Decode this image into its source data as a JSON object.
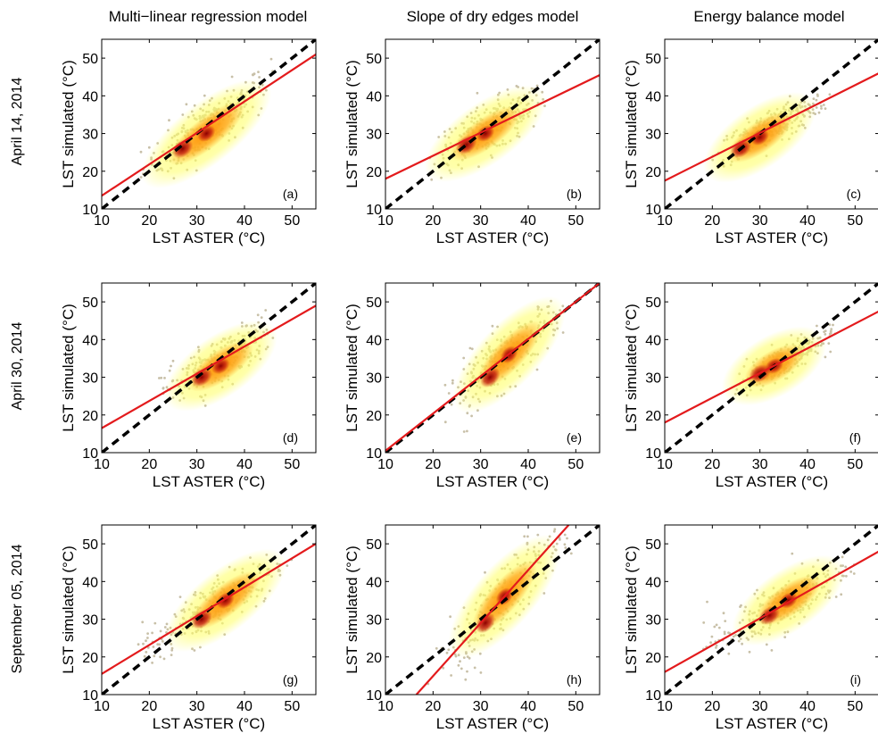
{
  "columns": [
    "Multi−linear regression model",
    "Slope of dry edges model",
    "Energy balance model"
  ],
  "rows": [
    "April 14, 2014",
    "April 30, 2014",
    "September 05, 2014"
  ],
  "colors": {
    "one_to_one_line": "#000000",
    "regression_line": "#e31a1c",
    "scatter_points": "#c8c0a8",
    "density_low": "#ffff66",
    "density_mid": "#ff8c00",
    "density_high": "#8b0000"
  },
  "chart_data": [
    {
      "type": "scatter",
      "panel_label": "(a)",
      "xlabel": "LST ASTER (°C)",
      "ylabel": "LST simulated (°C)",
      "xlim": [
        10,
        55
      ],
      "ylim": [
        10,
        55
      ],
      "xticks": [
        10,
        20,
        30,
        40,
        50
      ],
      "yticks": [
        10,
        20,
        30,
        40,
        50
      ],
      "reference_line": {
        "x": [
          10,
          55
        ],
        "y": [
          10,
          55
        ]
      },
      "regression_line": {
        "x": [
          10,
          55
        ],
        "y": [
          13.5,
          51
        ]
      },
      "density_core": {
        "x": [
          27,
          32,
          38
        ],
        "y": [
          26,
          30,
          37
        ]
      },
      "point_spread": {
        "x": [
          18,
          46
        ],
        "y": [
          18,
          52
        ]
      }
    },
    {
      "type": "scatter",
      "panel_label": "(b)",
      "xlabel": "LST ASTER (°C)",
      "ylabel": "LST simulated (°C)",
      "xlim": [
        10,
        55
      ],
      "ylim": [
        10,
        55
      ],
      "xticks": [
        10,
        20,
        30,
        40,
        50
      ],
      "yticks": [
        10,
        20,
        30,
        40,
        50
      ],
      "reference_line": {
        "x": [
          10,
          55
        ],
        "y": [
          10,
          55
        ]
      },
      "regression_line": {
        "x": [
          10,
          55
        ],
        "y": [
          18,
          45.5
        ]
      },
      "density_core": {
        "x": [
          27,
          31,
          37
        ],
        "y": [
          27,
          30,
          36
        ]
      },
      "point_spread": {
        "x": [
          19,
          45
        ],
        "y": [
          17,
          47
        ]
      }
    },
    {
      "type": "scatter",
      "panel_label": "(c)",
      "xlabel": "LST ASTER (°C)",
      "ylabel": "LST simulated (°C)",
      "xlim": [
        10,
        55
      ],
      "ylim": [
        10,
        55
      ],
      "xticks": [
        10,
        20,
        30,
        40,
        50
      ],
      "yticks": [
        10,
        20,
        30,
        40,
        50
      ],
      "reference_line": {
        "x": [
          10,
          55
        ],
        "y": [
          10,
          55
        ]
      },
      "regression_line": {
        "x": [
          10,
          55
        ],
        "y": [
          17.5,
          46
        ]
      },
      "density_core": {
        "x": [
          26,
          30,
          35
        ],
        "y": [
          26,
          29,
          34
        ]
      },
      "point_spread": {
        "x": [
          20,
          45
        ],
        "y": [
          20,
          42
        ]
      }
    },
    {
      "type": "scatter",
      "panel_label": "(d)",
      "xlabel": "LST ASTER (°C)",
      "ylabel": "LST simulated (°C)",
      "xlim": [
        10,
        55
      ],
      "ylim": [
        10,
        55
      ],
      "xticks": [
        10,
        20,
        30,
        40,
        50
      ],
      "yticks": [
        10,
        20,
        30,
        40,
        50
      ],
      "reference_line": {
        "x": [
          10,
          55
        ],
        "y": [
          10,
          55
        ]
      },
      "regression_line": {
        "x": [
          10,
          55
        ],
        "y": [
          16.5,
          49
        ]
      },
      "density_core": {
        "x": [
          31,
          35,
          40
        ],
        "y": [
          30,
          33,
          38
        ]
      },
      "point_spread": {
        "x": [
          22,
          47
        ],
        "y": [
          22,
          50
        ]
      }
    },
    {
      "type": "scatter",
      "panel_label": "(e)",
      "xlabel": "LST ASTER (°C)",
      "ylabel": "LST simulated (°C)",
      "xlim": [
        10,
        55
      ],
      "ylim": [
        10,
        55
      ],
      "xticks": [
        10,
        20,
        30,
        40,
        50
      ],
      "yticks": [
        10,
        20,
        30,
        40,
        50
      ],
      "reference_line": {
        "x": [
          10,
          55
        ],
        "y": [
          10,
          55
        ]
      },
      "regression_line": {
        "x": [
          10,
          55
        ],
        "y": [
          10.5,
          55
        ]
      },
      "density_core": {
        "x": [
          32,
          36,
          41
        ],
        "y": [
          30,
          36,
          42
        ]
      },
      "point_spread": {
        "x": [
          22,
          48
        ],
        "y": [
          15,
          51
        ]
      }
    },
    {
      "type": "scatter",
      "panel_label": "(f)",
      "xlabel": "LST ASTER (°C)",
      "ylabel": "LST simulated (°C)",
      "xlim": [
        10,
        55
      ],
      "ylim": [
        10,
        55
      ],
      "xticks": [
        10,
        20,
        30,
        40,
        50
      ],
      "yticks": [
        10,
        20,
        30,
        40,
        50
      ],
      "reference_line": {
        "x": [
          10,
          55
        ],
        "y": [
          10,
          55
        ]
      },
      "regression_line": {
        "x": [
          10,
          55
        ],
        "y": [
          18,
          47.5
        ]
      },
      "density_core": {
        "x": [
          30,
          33,
          38
        ],
        "y": [
          31,
          33,
          37
        ]
      },
      "point_spread": {
        "x": [
          24,
          46
        ],
        "y": [
          24,
          44
        ]
      }
    },
    {
      "type": "scatter",
      "panel_label": "(g)",
      "xlabel": "LST ASTER (°C)",
      "ylabel": "LST simulated (°C)",
      "xlim": [
        10,
        55
      ],
      "ylim": [
        10,
        55
      ],
      "xticks": [
        10,
        20,
        30,
        40,
        50
      ],
      "yticks": [
        10,
        20,
        30,
        40,
        50
      ],
      "reference_line": {
        "x": [
          10,
          55
        ],
        "y": [
          10,
          55
        ]
      },
      "regression_line": {
        "x": [
          10,
          55
        ],
        "y": [
          15.5,
          50
        ]
      },
      "density_core": {
        "x": [
          31,
          36,
          41
        ],
        "y": [
          30,
          35,
          40
        ]
      },
      "point_spread": {
        "x": [
          17,
          50
        ],
        "y": [
          17,
          50
        ]
      }
    },
    {
      "type": "scatter",
      "panel_label": "(h)",
      "xlabel": "LST ASTER (°C)",
      "ylabel": "LST simulated (°C)",
      "xlim": [
        10,
        55
      ],
      "ylim": [
        10,
        55
      ],
      "xticks": [
        10,
        20,
        30,
        40,
        50
      ],
      "yticks": [
        10,
        20,
        30,
        40,
        50
      ],
      "reference_line": {
        "x": [
          10,
          55
        ],
        "y": [
          10,
          55
        ]
      },
      "regression_line": {
        "x": [
          16.5,
          48.5
        ],
        "y": [
          10,
          55
        ]
      },
      "density_core": {
        "x": [
          31,
          35,
          40
        ],
        "y": [
          29,
          36,
          42
        ]
      },
      "point_spread": {
        "x": [
          18,
          52
        ],
        "y": [
          10,
          54
        ]
      }
    },
    {
      "type": "scatter",
      "panel_label": "(i)",
      "xlabel": "LST ASTER (°C)",
      "ylabel": "LST simulated (°C)",
      "xlim": [
        10,
        55
      ],
      "ylim": [
        10,
        55
      ],
      "xticks": [
        10,
        20,
        30,
        40,
        50
      ],
      "yticks": [
        10,
        20,
        30,
        40,
        50
      ],
      "reference_line": {
        "x": [
          10,
          55
        ],
        "y": [
          10,
          55
        ]
      },
      "regression_line": {
        "x": [
          10,
          55
        ],
        "y": [
          16,
          48
        ]
      },
      "density_core": {
        "x": [
          32,
          36,
          41
        ],
        "y": [
          31,
          35,
          39
        ]
      },
      "point_spread": {
        "x": [
          18,
          50
        ],
        "y": [
          17,
          48
        ]
      }
    }
  ]
}
